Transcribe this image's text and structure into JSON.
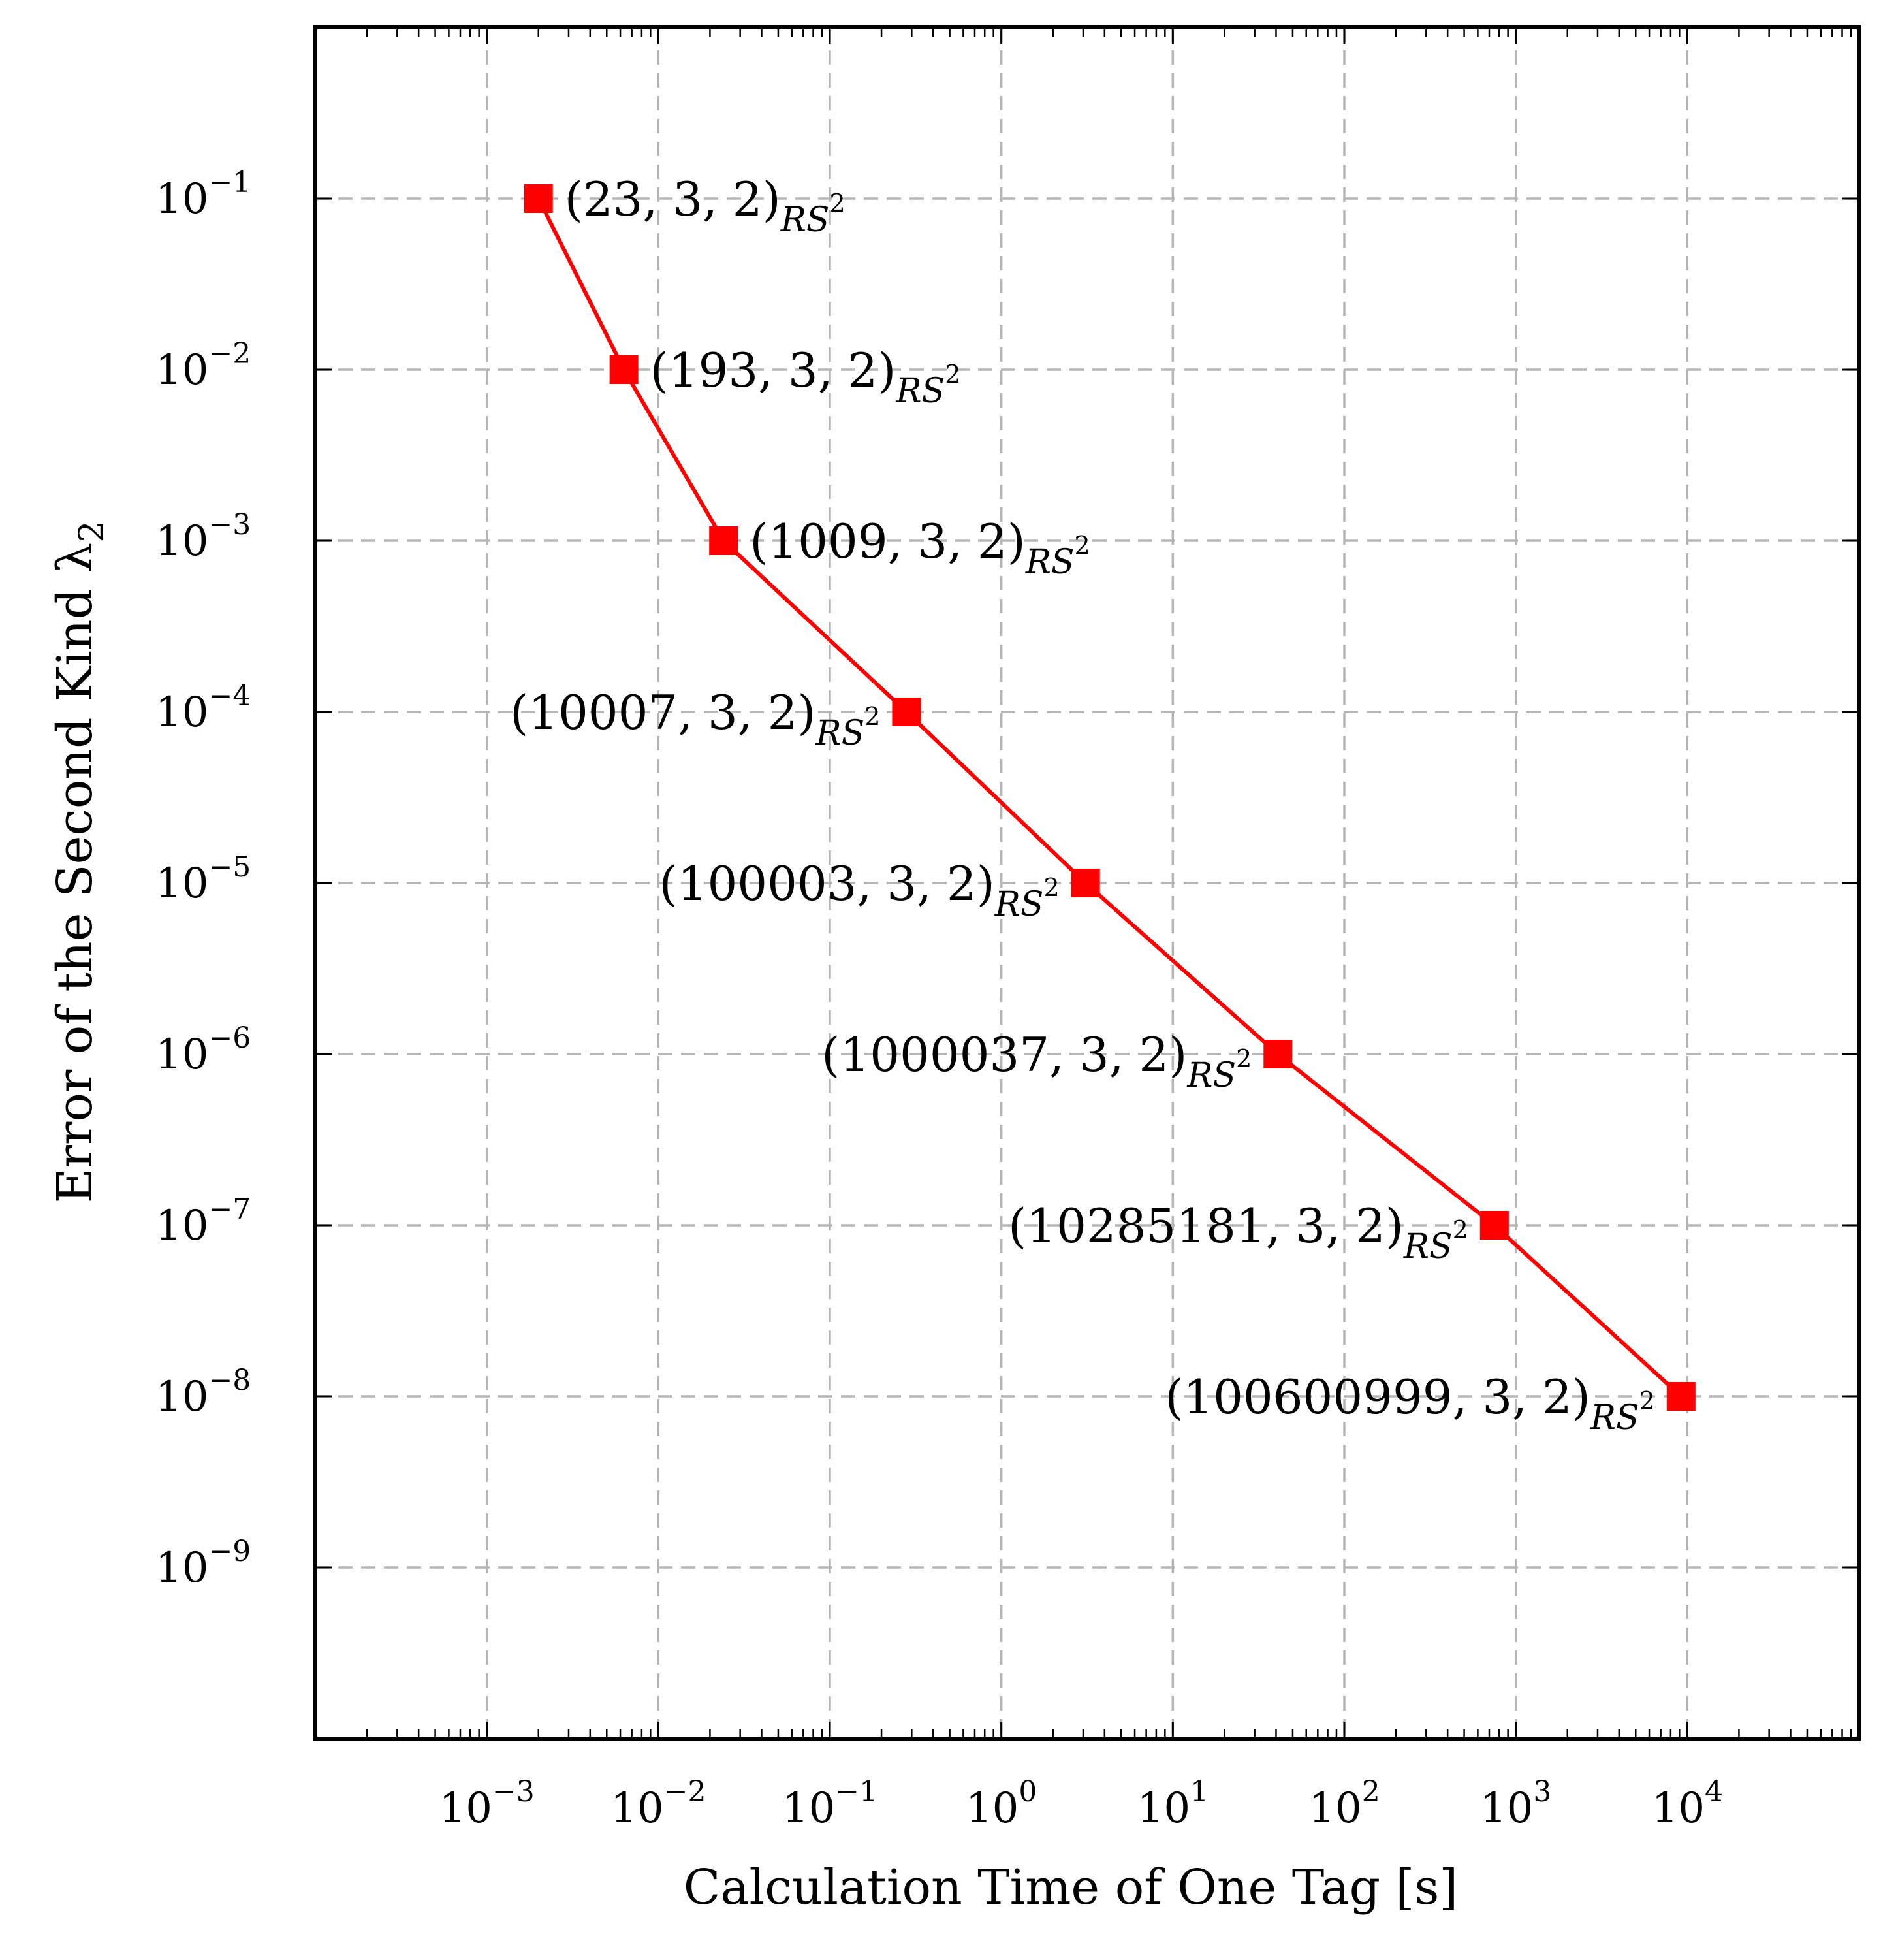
{
  "chart_data": {
    "type": "line",
    "xlabel": "Calculation Time of One Tag [s]",
    "ylabel": "Error of the Second Kind λ2",
    "x_scale": "log",
    "y_scale": "log",
    "xlim": [
      0.0001,
      100000
    ],
    "ylim": [
      1e-10,
      1
    ],
    "grid": true,
    "x_ticks": [
      {
        "base": "10",
        "exp": "−3",
        "value": 0.001
      },
      {
        "base": "10",
        "exp": "−2",
        "value": 0.01
      },
      {
        "base": "10",
        "exp": "−1",
        "value": 0.1
      },
      {
        "base": "10",
        "exp": "0",
        "value": 1
      },
      {
        "base": "10",
        "exp": "1",
        "value": 10
      },
      {
        "base": "10",
        "exp": "2",
        "value": 100
      },
      {
        "base": "10",
        "exp": "3",
        "value": 1000
      },
      {
        "base": "10",
        "exp": "4",
        "value": 10000
      }
    ],
    "y_ticks": [
      {
        "base": "10",
        "exp": "−1",
        "value": 0.1
      },
      {
        "base": "10",
        "exp": "−2",
        "value": 0.01
      },
      {
        "base": "10",
        "exp": "−3",
        "value": 0.001
      },
      {
        "base": "10",
        "exp": "−4",
        "value": 0.0001
      },
      {
        "base": "10",
        "exp": "−5",
        "value": 1e-05
      },
      {
        "base": "10",
        "exp": "−6",
        "value": 1e-06
      },
      {
        "base": "10",
        "exp": "−7",
        "value": 1e-07
      },
      {
        "base": "10",
        "exp": "−8",
        "value": 1e-08
      },
      {
        "base": "10",
        "exp": "−9",
        "value": 1e-09
      }
    ],
    "series": [
      {
        "color": "#ff0000",
        "marker": "square",
        "points": [
          {
            "x": 0.002,
            "y": 0.1,
            "label": "(23, 3, 2)",
            "sub": "RS",
            "sup": "2",
            "label_side": "right"
          },
          {
            "x": 0.0063,
            "y": 0.01,
            "label": "(193, 3, 2)",
            "sub": "RS",
            "sup": "2",
            "label_side": "right"
          },
          {
            "x": 0.024,
            "y": 0.001,
            "label": "(1009, 3, 2)",
            "sub": "RS",
            "sup": "2",
            "label_side": "right"
          },
          {
            "x": 0.28,
            "y": 0.0001,
            "label": "(10007, 3, 2)",
            "sub": "RS",
            "sup": "2",
            "label_side": "left"
          },
          {
            "x": 3.1,
            "y": 1e-05,
            "label": "(100003, 3, 2)",
            "sub": "RS",
            "sup": "2",
            "label_side": "left"
          },
          {
            "x": 41,
            "y": 1e-06,
            "label": "(1000037, 3, 2)",
            "sub": "RS",
            "sup": "2",
            "label_side": "left"
          },
          {
            "x": 750,
            "y": 1e-07,
            "label": "(10285181, 3, 2)",
            "sub": "RS",
            "sup": "2",
            "label_side": "left"
          },
          {
            "x": 9200,
            "y": 1e-08,
            "label": "(100600999, 3, 2)",
            "sub": "RS",
            "sup": "2",
            "label_side": "left"
          }
        ]
      }
    ]
  }
}
